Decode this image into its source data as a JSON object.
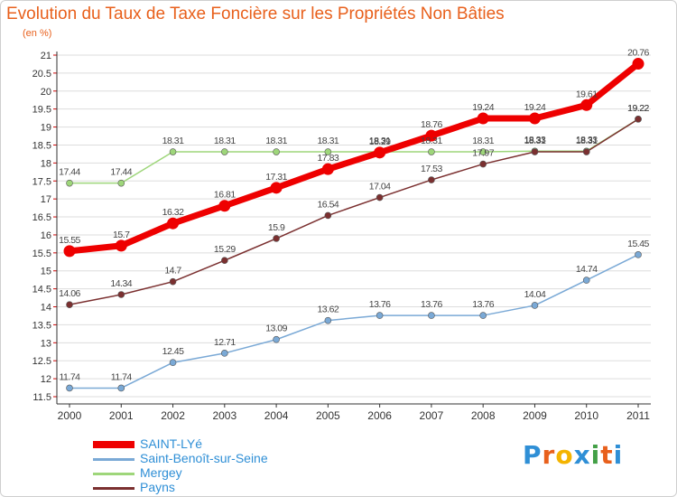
{
  "header": {
    "title": "Evolution du Taux de Taxe Foncière sur les Propriétés Non Bâties",
    "unit": "(en %)"
  },
  "logo": {
    "text": "Proxiti",
    "letters": [
      "P",
      "r",
      "o",
      "x",
      "i",
      "t",
      "i"
    ],
    "colors": [
      "#2f8fd6",
      "#e8601c",
      "#f4b400",
      "#2f8fd6",
      "#43a047",
      "#e8601c",
      "#2f8fd6"
    ]
  },
  "colors": {
    "title": "#e8601c",
    "axis": "#333333",
    "grid": "#dddddd",
    "tick_mark": "#cc0000"
  },
  "chart_data": {
    "type": "line",
    "title": "Evolution du Taux de Taxe Foncière sur les Propriétés Non Bâties",
    "ylabel": "(en %)",
    "xlabel": "",
    "ylim": [
      11.5,
      21
    ],
    "yticks": [
      "11.5",
      "12",
      "12.5",
      "13",
      "13.5",
      "14",
      "14.5",
      "15",
      "15.5",
      "16",
      "16.5",
      "17",
      "17.5",
      "18",
      "18.5",
      "19",
      "19.5",
      "20",
      "20.5",
      "21"
    ],
    "categories": [
      "2000",
      "2001",
      "2002",
      "2003",
      "2004",
      "2005",
      "2006",
      "2007",
      "2008",
      "2009",
      "2010",
      "2011"
    ],
    "grid": "horizontal",
    "legend": "bottom-left",
    "series": [
      {
        "name": "SAINT-LYé",
        "color": "#ee0000",
        "values": [
          15.55,
          15.7,
          16.32,
          16.81,
          17.31,
          17.83,
          18.29,
          18.76,
          19.24,
          19.24,
          19.61,
          20.76
        ],
        "labels": [
          "15.55",
          "15.7",
          "16.32",
          "16.81",
          "17.31",
          "17.83",
          "18.29",
          "18.76",
          "19.24",
          "19.24",
          "19.61",
          "20.76"
        ]
      },
      {
        "name": "Saint-Benoît-sur-Seine",
        "color": "#7aa9d6",
        "values": [
          11.74,
          11.74,
          12.45,
          12.71,
          13.09,
          13.62,
          13.76,
          13.76,
          13.76,
          14.04,
          14.74,
          15.45
        ],
        "labels": [
          "11.74",
          "11.74",
          "12.45",
          "12.71",
          "13.09",
          "13.62",
          "13.76",
          "13.76",
          "13.76",
          "14.04",
          "14.74",
          "15.45"
        ]
      },
      {
        "name": "Mergey",
        "color": "#9ed67a",
        "values": [
          17.44,
          17.44,
          18.31,
          18.31,
          18.31,
          18.31,
          18.31,
          18.31,
          18.31,
          18.33,
          18.33,
          19.22
        ],
        "labels": [
          "17.44",
          "17.44",
          "18.31",
          "18.31",
          "18.31",
          "18.31",
          "18.31",
          "18.31",
          "18.31",
          "18.33",
          "18.33",
          "19.22"
        ]
      },
      {
        "name": "Payns",
        "color": "#7b3030",
        "values": [
          14.06,
          14.34,
          14.7,
          15.29,
          15.9,
          16.54,
          17.04,
          17.53,
          17.97,
          18.31,
          18.31,
          19.22
        ],
        "labels": [
          "14.06",
          "14.34",
          "14.7",
          "15.29",
          "15.9",
          "16.54",
          "17.04",
          "17.53",
          "17.97",
          "18.31",
          "18.31",
          "19.22"
        ]
      }
    ]
  }
}
